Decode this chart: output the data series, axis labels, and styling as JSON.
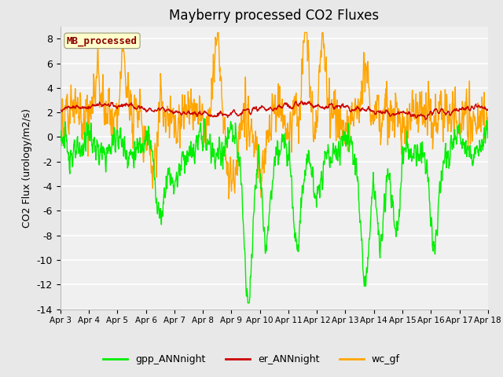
{
  "title": "Mayberry processed CO2 Fluxes",
  "ylabel": "CO2 Flux (urology/m2/s)",
  "ylim": [
    -14,
    9
  ],
  "yticks": [
    -14,
    -12,
    -10,
    -8,
    -6,
    -4,
    -2,
    0,
    2,
    4,
    6,
    8
  ],
  "bg_color": "#e8e8e8",
  "plot_bg_color": "#f0f0f0",
  "grid_color": "#ffffff",
  "annotation_text": "MB_processed",
  "annotation_color": "#8b0000",
  "annotation_bg": "#ffffcc",
  "gpp_color": "#00ee00",
  "er_color": "#cc0000",
  "wc_color": "#ffa500",
  "line_width": 1.0,
  "n_points": 1440,
  "x_tick_labels": [
    "Apr 3",
    "Apr 4",
    "Apr 5",
    "Apr 6",
    "Apr 7",
    "Apr 8",
    "Apr 9",
    "Apr 10",
    "Apr 11",
    "Apr 12",
    "Apr 13",
    "Apr 14",
    "Apr 15",
    "Apr 16",
    "Apr 17",
    "Apr 18"
  ],
  "legend_labels": [
    "gpp_ANNnight",
    "er_ANNnight",
    "wc_gf"
  ],
  "legend_colors": [
    "#00ee00",
    "#cc0000",
    "#ffa500"
  ]
}
